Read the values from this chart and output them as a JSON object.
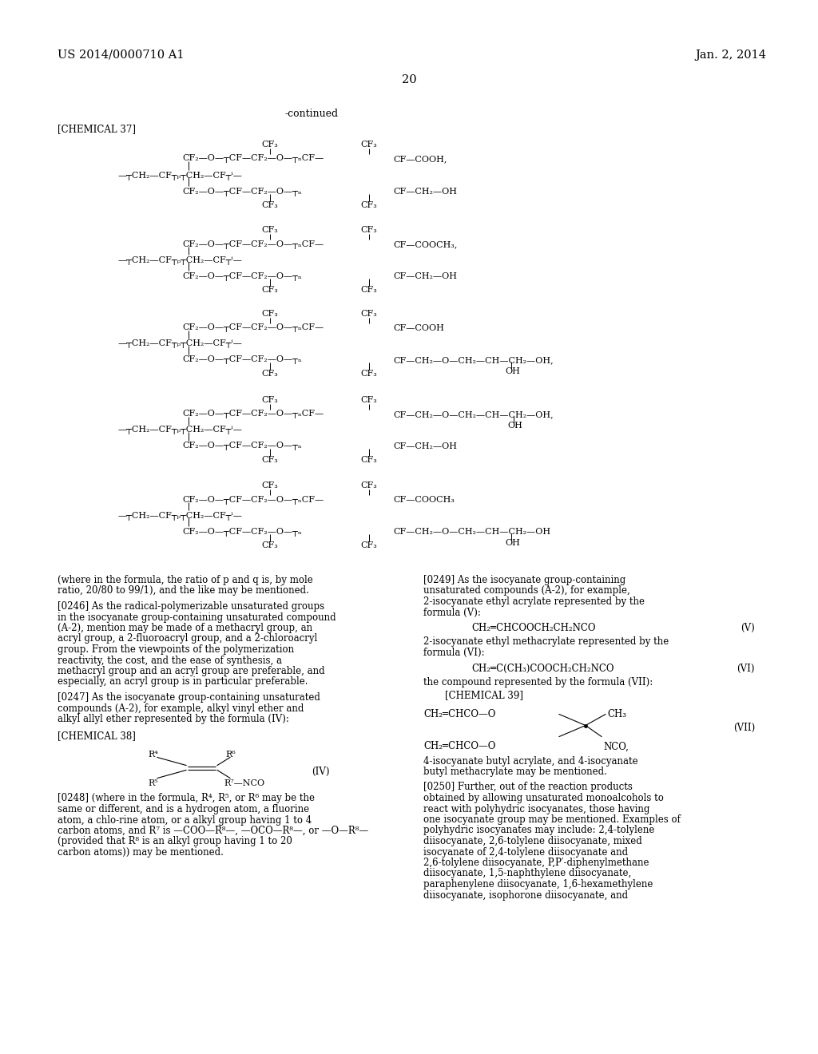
{
  "background_color": "#ffffff",
  "text_color": "#000000",
  "page_header_left": "US 2014/0000710 A1",
  "page_header_right": "Jan. 2, 2014",
  "page_number": "20",
  "continued_label": "-continued",
  "chem37_label": "[CHEMICAL 37]",
  "chem38_label": "[CHEMICAL 38]",
  "chem39_label": "[CHEMICAL 39]"
}
